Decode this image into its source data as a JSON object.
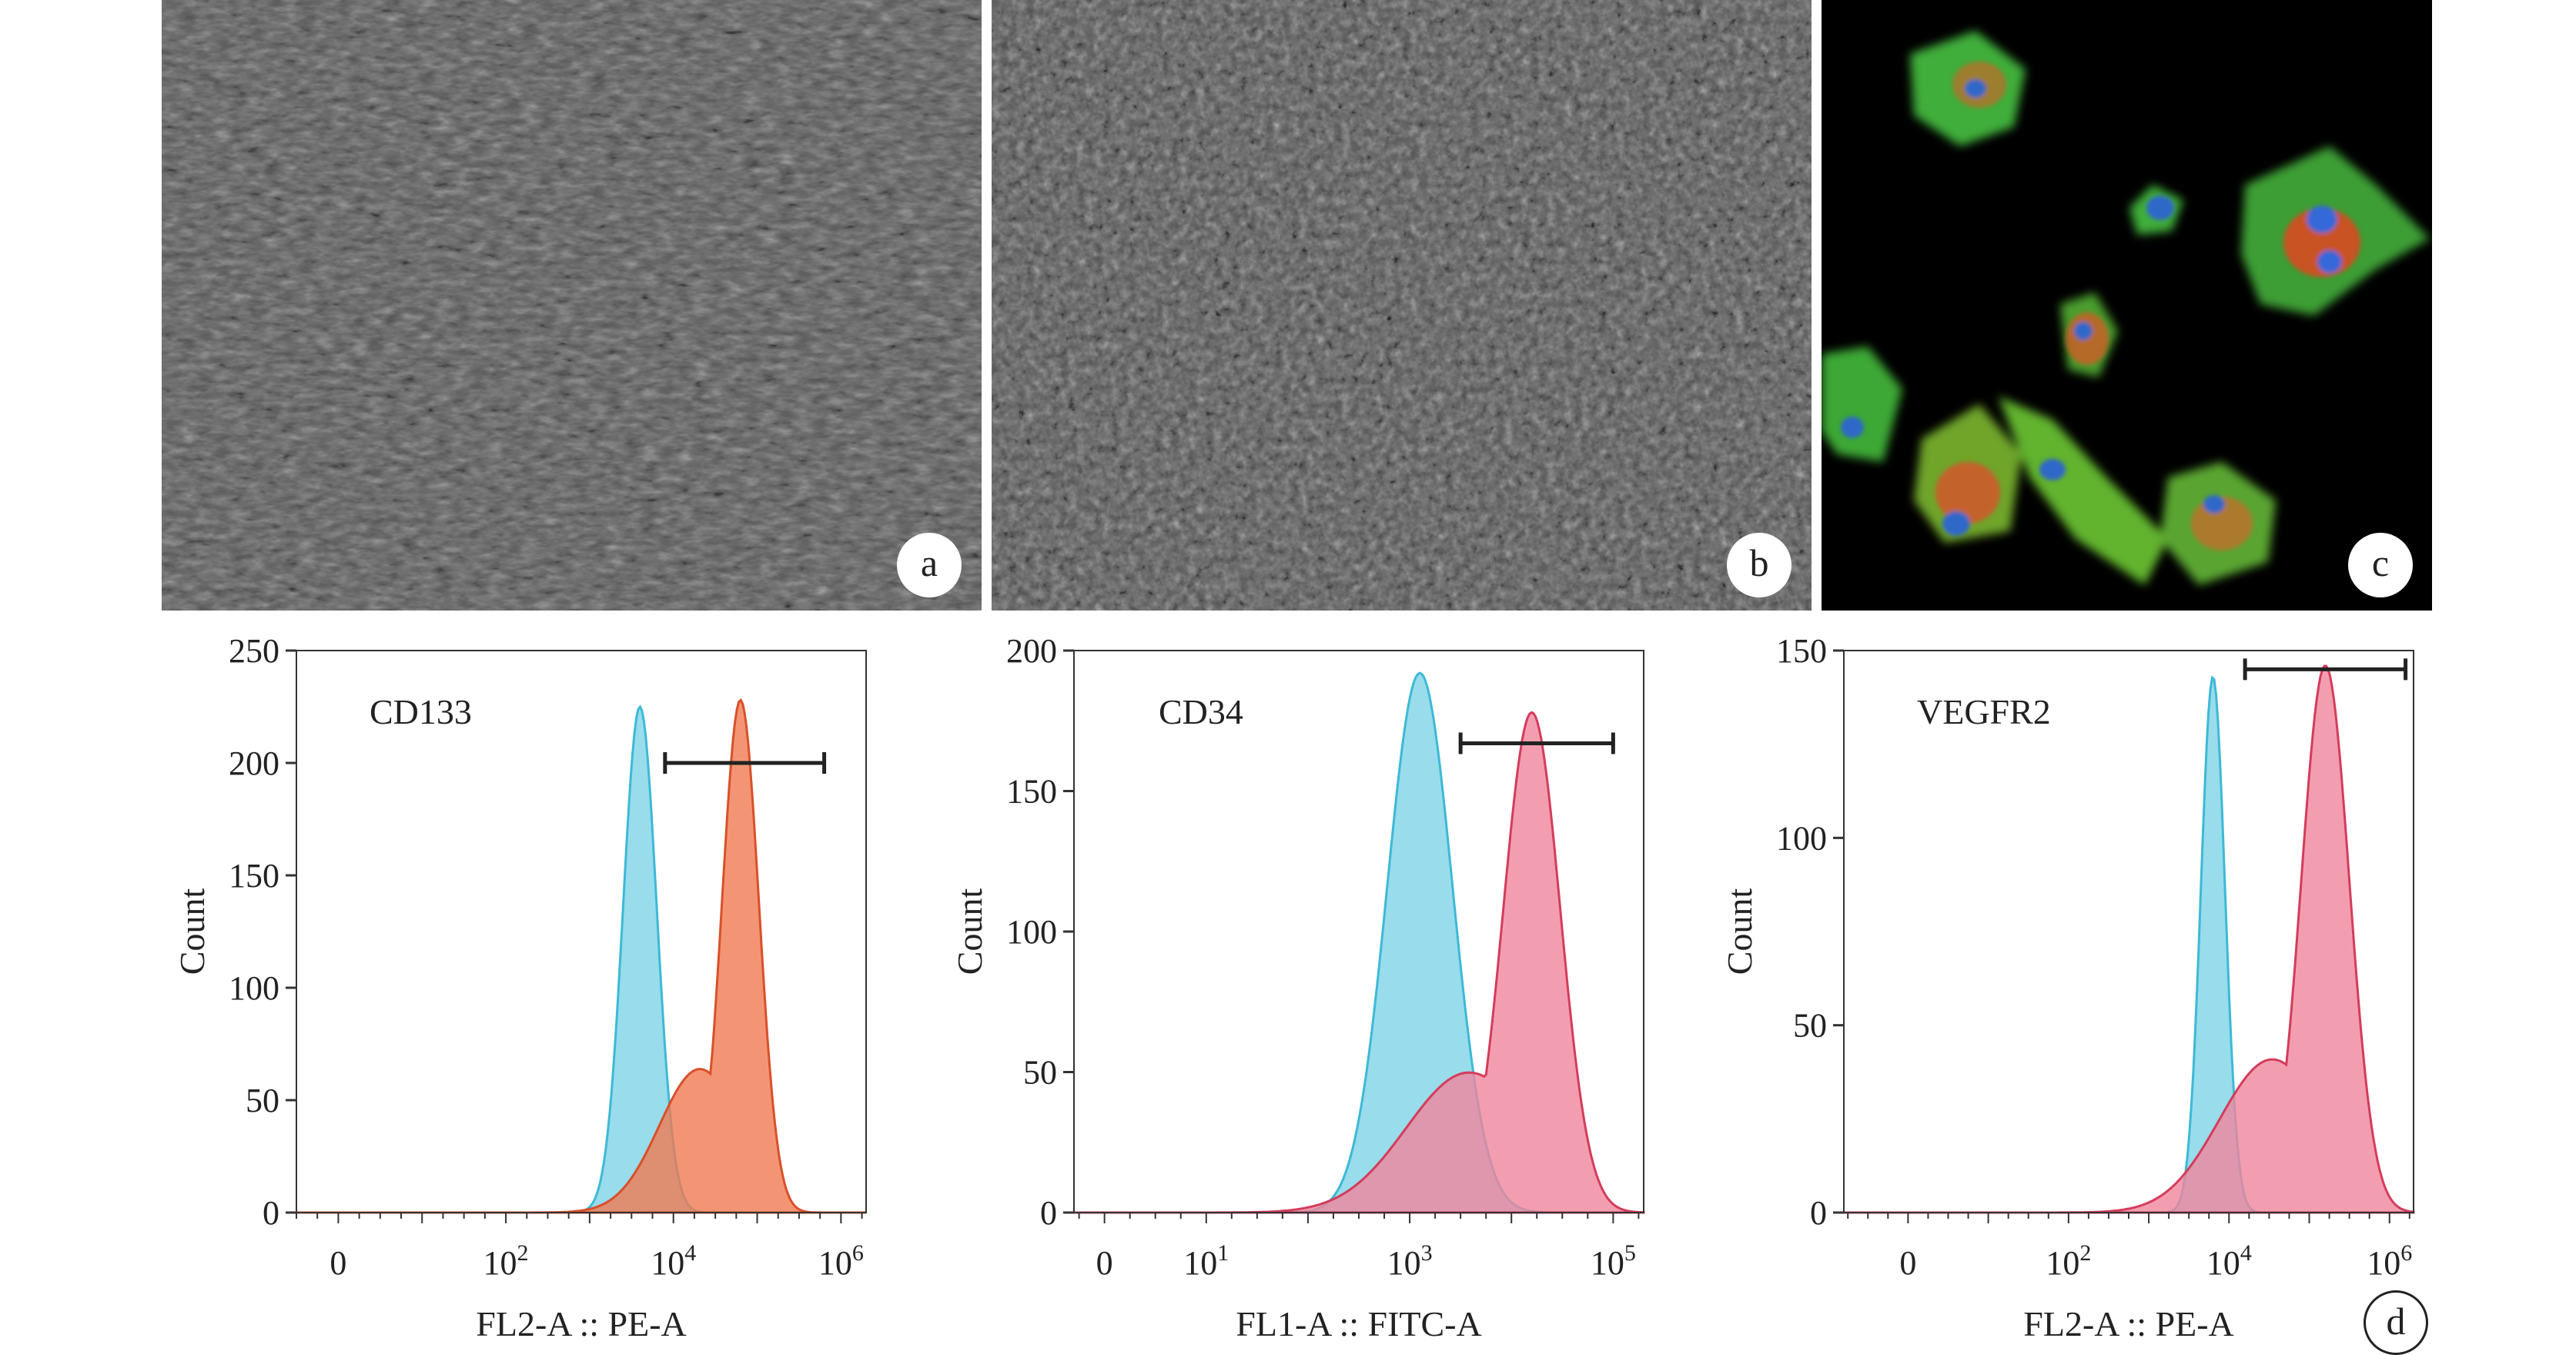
{
  "panels": {
    "a": {
      "label": "a"
    },
    "b": {
      "label": "b"
    },
    "c": {
      "label": "c"
    },
    "d": {
      "label": "d"
    }
  },
  "colors": {
    "control": "#7fd3e6",
    "control_edge": "#3db9d6",
    "cd133_stain": "#f07a52",
    "cd133_edge": "#d9502a",
    "stain": "#f0869c",
    "stain_edge": "#d43c5c",
    "microscopy_bg": "#5a5a5a",
    "fluorescence_bg": "#000000"
  },
  "chart_data": [
    {
      "type": "histogram",
      "title": "CD133",
      "xlabel": "FL2-A :: PE-A",
      "ylabel": "Count",
      "xscale": "biexponential",
      "xlim": [
        -0.5,
        6.3
      ],
      "ylim": [
        0,
        250
      ],
      "yticks": [
        0,
        50,
        100,
        150,
        200,
        250
      ],
      "xticks": [
        {
          "pos": 0,
          "label": "0"
        },
        {
          "pos": 2,
          "label": "10",
          "exp": "2"
        },
        {
          "pos": 4,
          "label": "10",
          "exp": "4"
        },
        {
          "pos": 6,
          "label": "10",
          "exp": "6"
        }
      ],
      "gate": {
        "from": 3.9,
        "to": 5.8,
        "y": 200
      },
      "series": [
        {
          "role": "control",
          "peak_x": 3.6,
          "peak_y": 225,
          "width": 0.2
        },
        {
          "role": "stained",
          "peak_x": 4.8,
          "peak_y": 228,
          "width": 0.22
        }
      ]
    },
    {
      "type": "histogram",
      "title": "CD34",
      "xlabel": "FL1-A :: FITC-A",
      "ylabel": "Count",
      "xscale": "biexponential",
      "xlim": [
        -0.3,
        5.3
      ],
      "ylim": [
        0,
        200
      ],
      "yticks": [
        0,
        50,
        100,
        150,
        200
      ],
      "xticks": [
        {
          "pos": 0,
          "label": "0"
        },
        {
          "pos": 1,
          "label": "10",
          "exp": "1"
        },
        {
          "pos": 3,
          "label": "10",
          "exp": "3"
        },
        {
          "pos": 5,
          "label": "10",
          "exp": "5"
        }
      ],
      "gate": {
        "from": 3.5,
        "to": 5.0,
        "y": 167
      },
      "series": [
        {
          "role": "control",
          "peak_x": 3.1,
          "peak_y": 192,
          "width": 0.32
        },
        {
          "role": "stained",
          "peak_x": 4.2,
          "peak_y": 178,
          "width": 0.28
        }
      ]
    },
    {
      "type": "histogram",
      "title": "VEGFR2",
      "xlabel": "FL2-A :: PE-A",
      "ylabel": "Count",
      "xscale": "biexponential",
      "xlim": [
        -0.8,
        6.3
      ],
      "ylim": [
        0,
        150
      ],
      "yticks": [
        0,
        50,
        100,
        150
      ],
      "xticks": [
        {
          "pos": 0,
          "label": "0"
        },
        {
          "pos": 2,
          "label": "10",
          "exp": "2"
        },
        {
          "pos": 4,
          "label": "10",
          "exp": "4"
        },
        {
          "pos": 6,
          "label": "10",
          "exp": "6"
        }
      ],
      "gate": {
        "from": 4.2,
        "to": 6.2,
        "y": 145
      },
      "series": [
        {
          "role": "control",
          "peak_x": 3.8,
          "peak_y": 143,
          "width": 0.15
        },
        {
          "role": "stained",
          "peak_x": 5.2,
          "peak_y": 146,
          "width": 0.3
        }
      ]
    }
  ]
}
